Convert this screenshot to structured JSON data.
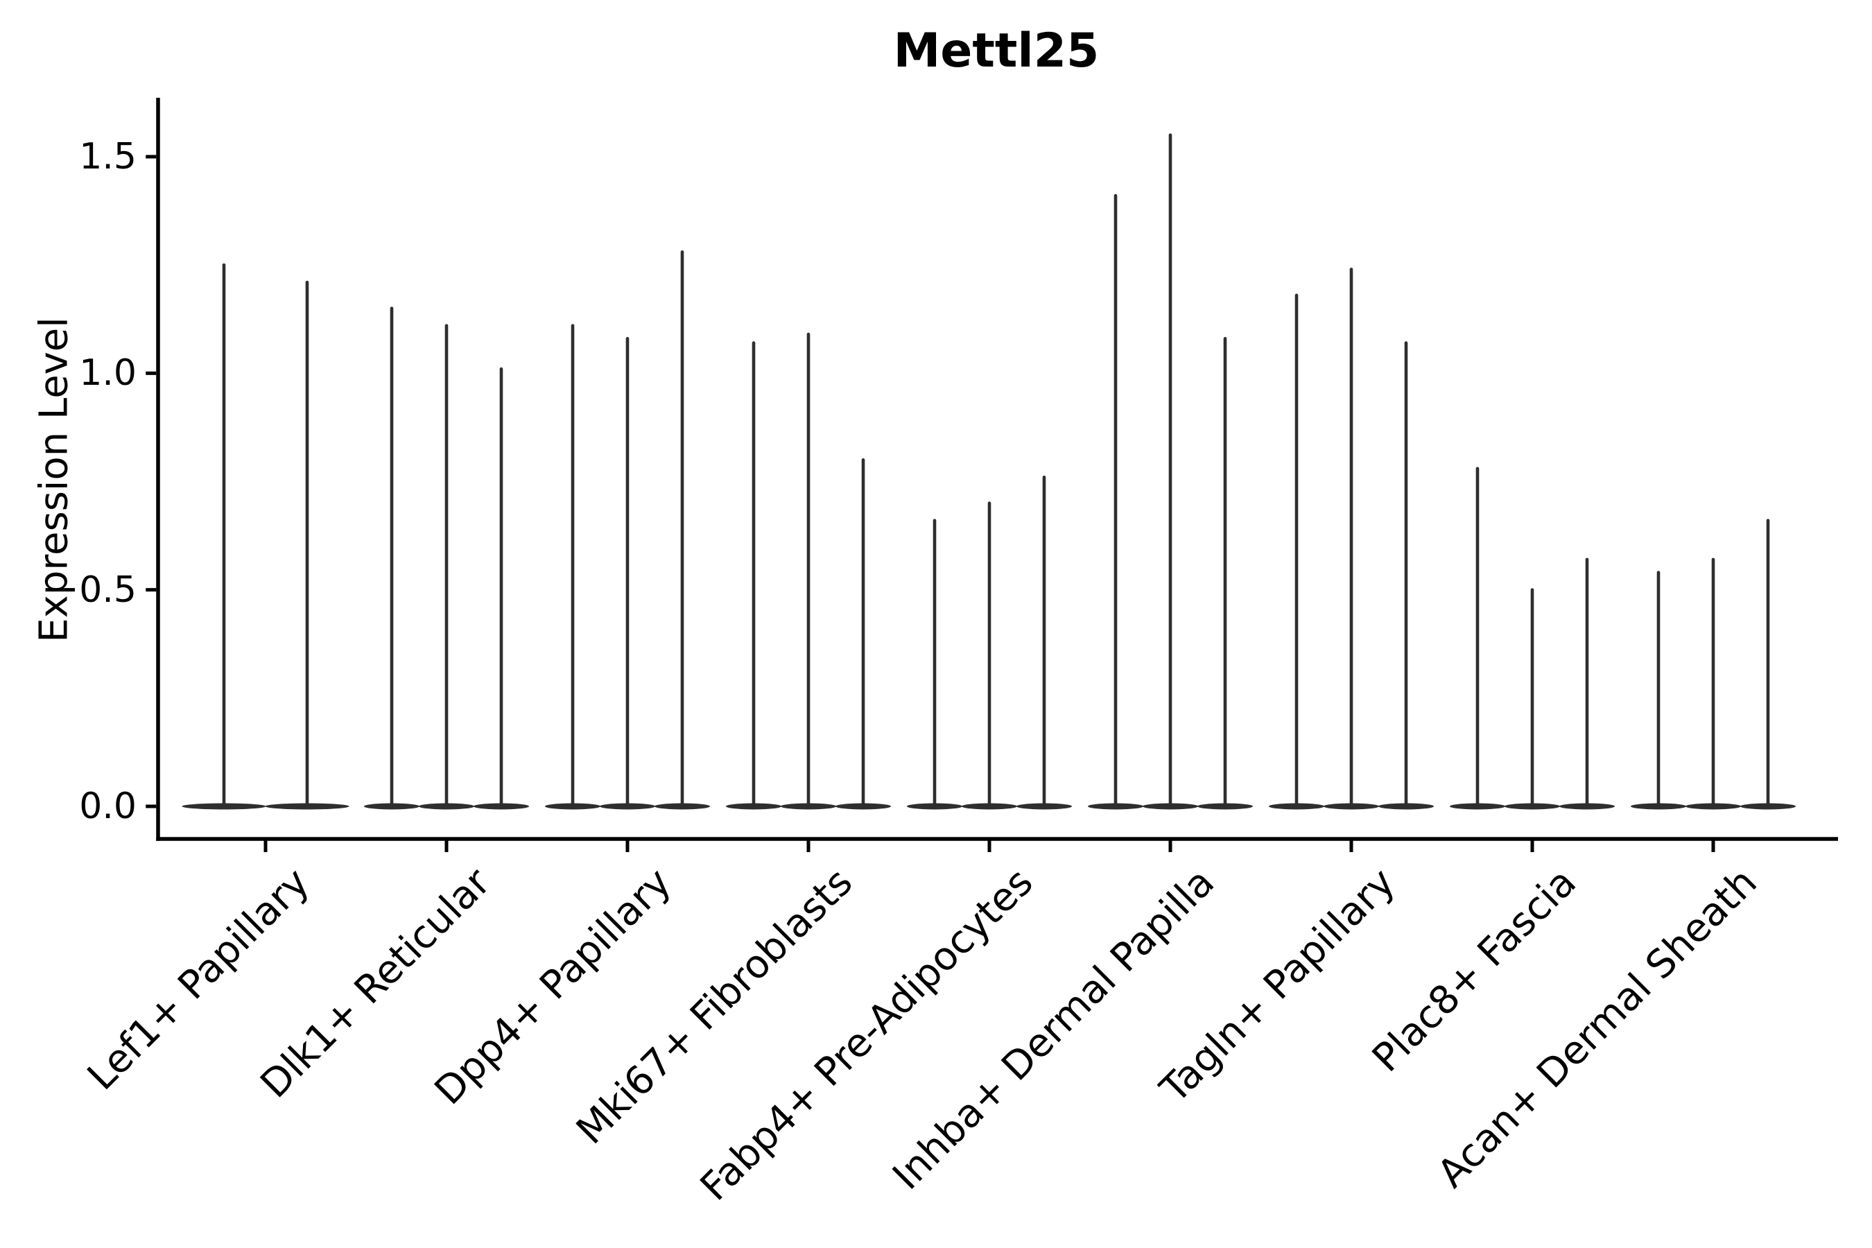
{
  "title": "Mettl25",
  "y_axis": {
    "label": "Expression Level",
    "tick_labels": [
      "0.0",
      "0.5",
      "1.0",
      "1.5"
    ]
  },
  "colors": {
    "violin": "#2e2e2e",
    "axis": "#000000",
    "text": "#000000",
    "background": "#ffffff"
  },
  "chart_data": {
    "type": "violin",
    "title": "Mettl25",
    "xlabel": "",
    "ylabel": "Expression Level",
    "ylim": [
      0,
      1.64
    ],
    "yticks": [
      0,
      0.5,
      1.0,
      1.5
    ],
    "ytick_labels": [
      "0.0",
      "0.5",
      "1.0",
      "1.5"
    ],
    "grid": false,
    "legend": "none",
    "x_label_rotation_deg": 45,
    "categories": [
      "Lef1+ Papillary",
      "Dlk1+ Reticular",
      "Dpp4+ Papillary",
      "Mki67+ Fibroblasts",
      "Fabp4+ Pre-Adipocytes",
      "Inhba+ Dermal Papilla",
      "Tagln+ Papillary",
      "Plac8+ Fascia",
      "Acan+ Dermal Sheath"
    ],
    "violins": [
      {
        "category": "Lef1+ Papillary",
        "baseline": 0,
        "max_values": [
          1.25,
          1.21
        ]
      },
      {
        "category": "Dlk1+ Reticular",
        "baseline": 0,
        "max_values": [
          1.15,
          1.11,
          1.01
        ]
      },
      {
        "category": "Dpp4+ Papillary",
        "baseline": 0,
        "max_values": [
          1.11,
          1.08,
          1.28
        ]
      },
      {
        "category": "Mki67+ Fibroblasts",
        "baseline": 0,
        "max_values": [
          1.07,
          1.09,
          0.8
        ]
      },
      {
        "category": "Fabp4+ Pre-Adipocytes",
        "baseline": 0,
        "max_values": [
          0.66,
          0.7,
          0.76
        ]
      },
      {
        "category": "Inhba+ Dermal Papilla",
        "baseline": 0,
        "max_values": [
          1.41,
          1.55,
          1.08
        ]
      },
      {
        "category": "Tagln+ Papillary",
        "baseline": 0,
        "max_values": [
          1.18,
          1.24,
          1.07
        ]
      },
      {
        "category": "Plac8+ Fascia",
        "baseline": 0,
        "max_values": [
          0.78,
          0.5,
          0.57
        ]
      },
      {
        "category": "Acan+ Dermal Sheath",
        "baseline": 0,
        "max_values": [
          0.54,
          0.57,
          0.66
        ]
      }
    ]
  }
}
